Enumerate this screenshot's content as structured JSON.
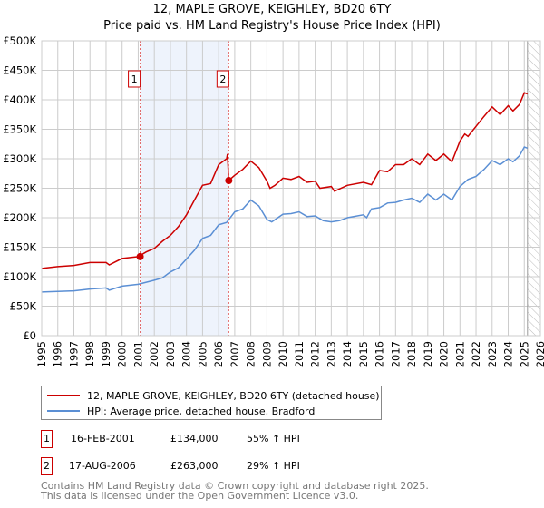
{
  "chart_data": {
    "type": "line",
    "title": "12, MAPLE GROVE, KEIGHLEY, BD20 6TY",
    "subtitle": "Price paid vs. HM Land Registry's House Price Index (HPI)",
    "xlim": [
      1995,
      2026
    ],
    "ylim": [
      0,
      500000
    ],
    "x_ticks": [
      "1995",
      "1996",
      "1997",
      "1998",
      "1999",
      "2000",
      "2001",
      "2002",
      "2003",
      "2004",
      "2005",
      "2006",
      "2007",
      "2008",
      "2009",
      "2010",
      "2011",
      "2012",
      "2013",
      "2014",
      "2015",
      "2016",
      "2017",
      "2018",
      "2019",
      "2020",
      "2021",
      "2022",
      "2023",
      "2024",
      "2025",
      "2026"
    ],
    "y_ticks": [
      {
        "v": 0,
        "label": "£0"
      },
      {
        "v": 50000,
        "label": "£50K"
      },
      {
        "v": 100000,
        "label": "£100K"
      },
      {
        "v": 150000,
        "label": "£150K"
      },
      {
        "v": 200000,
        "label": "£200K"
      },
      {
        "v": 250000,
        "label": "£250K"
      },
      {
        "v": 300000,
        "label": "£300K"
      },
      {
        "v": 350000,
        "label": "£350K"
      },
      {
        "v": 400000,
        "label": "£400K"
      },
      {
        "v": 450000,
        "label": "£450K"
      },
      {
        "v": 500000,
        "label": "£500K"
      }
    ],
    "grid": true,
    "shaded_range": [
      2001.12,
      2006.63
    ],
    "forecast_hatch_from": 2025.2,
    "series": [
      {
        "name": "12, MAPLE GROVE, KEIGHLEY, BD20 6TY (detached house)",
        "color": "#cc0000",
        "x": [
          1995,
          1996,
          1997,
          1998,
          1999,
          1999.2,
          2000,
          2001,
          2001.5,
          2002,
          2002.5,
          2003,
          2003.5,
          2004,
          2004.5,
          2005,
          2005.5,
          2006,
          2006.5,
          2006.55,
          2006.63,
          2007,
          2007.5,
          2008,
          2008.5,
          2009,
          2009.2,
          2009.5,
          2010,
          2010.5,
          2011,
          2011.5,
          2012,
          2012.3,
          2013,
          2013.2,
          2014,
          2015,
          2015.5,
          2016,
          2016.5,
          2017,
          2017.5,
          2018,
          2018.5,
          2019,
          2019.5,
          2020,
          2020.5,
          2021,
          2021.3,
          2021.5,
          2022,
          2022.5,
          2023,
          2023.5,
          2024,
          2024.3,
          2024.7,
          2025,
          2025.2
        ],
        "y": [
          114000,
          117000,
          119000,
          124000,
          124000,
          120000,
          131000,
          134000,
          142000,
          148000,
          160000,
          170000,
          185000,
          205000,
          230000,
          255000,
          258000,
          290000,
          300000,
          308000,
          263000,
          272000,
          282000,
          296000,
          285000,
          262000,
          250000,
          255000,
          267000,
          265000,
          270000,
          260000,
          262000,
          250000,
          253000,
          245000,
          255000,
          260000,
          256000,
          280000,
          278000,
          290000,
          290000,
          300000,
          290000,
          308000,
          297000,
          308000,
          295000,
          330000,
          342000,
          338000,
          355000,
          372000,
          388000,
          375000,
          390000,
          381000,
          392000,
          412000,
          410000
        ]
      },
      {
        "name": "HPI: Average price, detached house, Bradford",
        "color": "#5b8fd4",
        "x": [
          1995,
          1996,
          1997,
          1998,
          1999,
          1999.2,
          2000,
          2001,
          2002,
          2002.5,
          2003,
          2003.5,
          2004,
          2004.5,
          2005,
          2005.5,
          2006,
          2006.5,
          2007,
          2007.5,
          2008,
          2008.5,
          2009,
          2009.3,
          2010,
          2010.5,
          2011,
          2011.5,
          2012,
          2012.5,
          2013,
          2013.5,
          2014,
          2015,
          2015.2,
          2015.5,
          2016,
          2016.5,
          2017,
          2017.5,
          2018,
          2018.5,
          2019,
          2019.5,
          2020,
          2020.5,
          2021,
          2021.5,
          2022,
          2022.5,
          2023,
          2023.5,
          2024,
          2024.3,
          2024.7,
          2025,
          2025.2
        ],
        "y": [
          74000,
          75000,
          76000,
          79000,
          81000,
          77000,
          84000,
          87000,
          94000,
          98000,
          108000,
          115000,
          130000,
          145000,
          165000,
          170000,
          188000,
          192000,
          210000,
          215000,
          230000,
          220000,
          197000,
          193000,
          206000,
          207000,
          210000,
          202000,
          203000,
          195000,
          193000,
          195000,
          200000,
          205000,
          200000,
          215000,
          217000,
          225000,
          226000,
          230000,
          233000,
          226000,
          240000,
          230000,
          240000,
          230000,
          253000,
          265000,
          270000,
          282000,
          297000,
          290000,
          300000,
          295000,
          305000,
          320000,
          318000
        ]
      }
    ],
    "annotations": [
      {
        "label": "1",
        "x": 2001.12,
        "y": 134000
      },
      {
        "label": "2",
        "x": 2006.63,
        "y": 263000
      }
    ]
  },
  "legend": {
    "property": "12, MAPLE GROVE, KEIGHLEY, BD20 6TY (detached house)",
    "hpi": "HPI: Average price, detached house, Bradford",
    "property_color": "#cc0000",
    "hpi_color": "#5b8fd4"
  },
  "transactions": [
    {
      "num": "1",
      "date": "16-FEB-2001",
      "price": "£134,000",
      "hpi": "55% ↑ HPI"
    },
    {
      "num": "2",
      "date": "17-AUG-2006",
      "price": "£263,000",
      "hpi": "29% ↑ HPI"
    }
  ],
  "footer": {
    "line1": "Contains HM Land Registry data © Crown copyright and database right 2025.",
    "line2": "This data is licensed under the Open Government Licence v3.0."
  }
}
